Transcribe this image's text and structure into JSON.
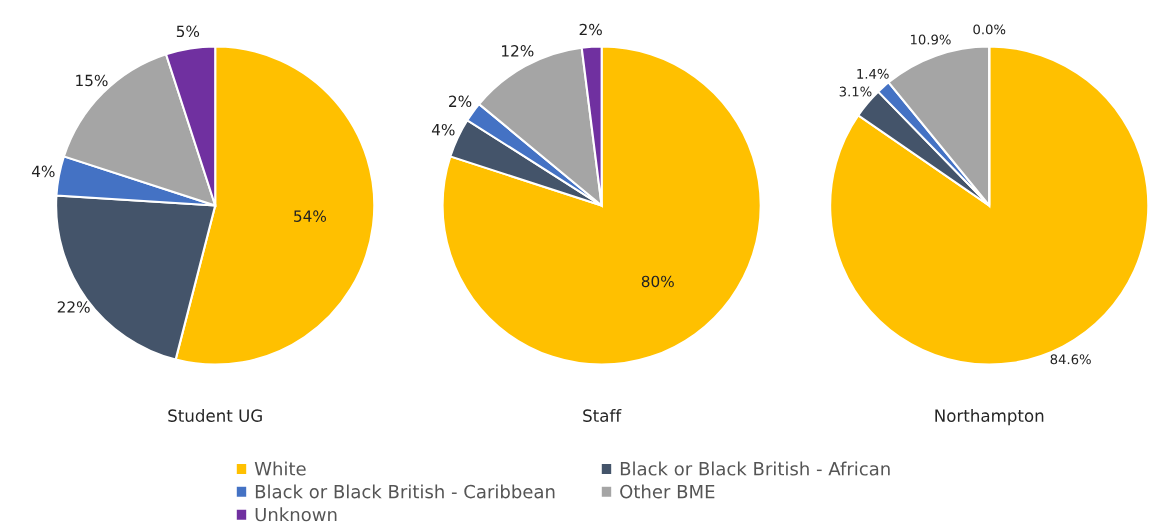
{
  "chart_data": [
    {
      "type": "pie",
      "title": "Student UG",
      "categories": [
        "White",
        "Black or Black British - African",
        "Black or Black British - Caribbean",
        "Other BME",
        "Unknown"
      ],
      "values": [
        54,
        22,
        4,
        15,
        5
      ],
      "value_labels": [
        "54%",
        "22%",
        "4%",
        "15%",
        "5%"
      ],
      "colors": [
        "#ffc000",
        "#44546a",
        "#4472c4",
        "#a5a5a5",
        "#7030a0"
      ],
      "legend": "bottom"
    },
    {
      "type": "pie",
      "title": "Staff",
      "values": [
        80,
        4,
        2,
        12,
        2
      ],
      "value_labels": [
        "80%",
        "4%",
        "2%",
        "12%",
        "2%"
      ],
      "colors": [
        "#ffc000",
        "#44546a",
        "#4472c4",
        "#a5a5a5",
        "#7030a0"
      ]
    },
    {
      "type": "pie",
      "title": "Northampton",
      "values": [
        84.6,
        3.1,
        1.4,
        10.9,
        0.0
      ],
      "value_labels": [
        "84.6%",
        "3.1%",
        "1.4%",
        "10.9%",
        "0.0%"
      ],
      "colors": [
        "#ffc000",
        "#44546a",
        "#4472c4",
        "#a5a5a5",
        "#7030a0"
      ]
    }
  ]
}
